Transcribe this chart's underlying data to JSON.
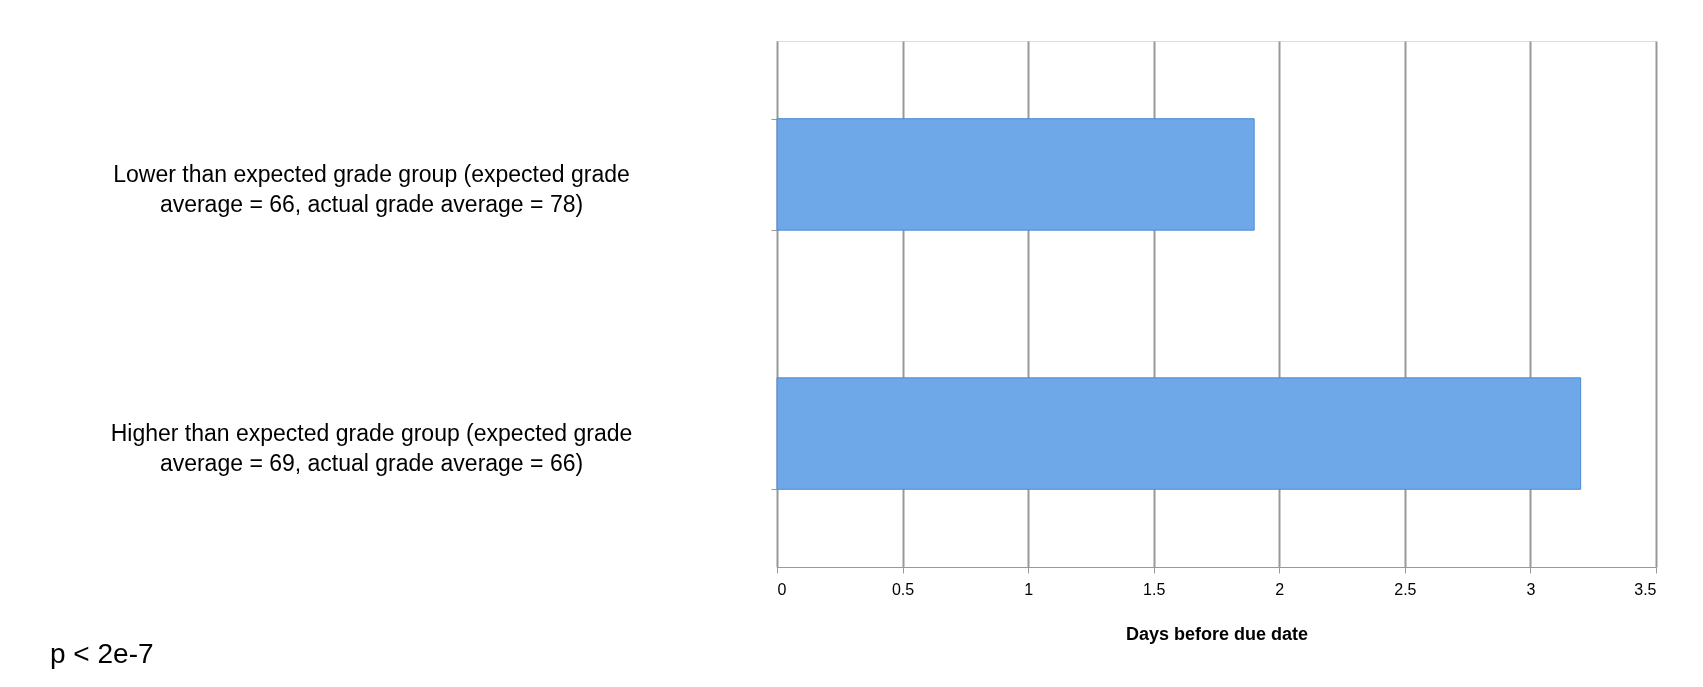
{
  "chart_data": {
    "type": "bar",
    "orientation": "horizontal",
    "xlabel": "Days before due date",
    "categories": [
      "Lower than expected grade group (expected grade average = 66, actual grade average = 78)",
      "Higher than expected grade group (expected grade average = 69, actual grade average = 66)"
    ],
    "values": [
      1.9,
      3.2
    ],
    "color": "#6fa8e8",
    "xlim": [
      0,
      3.5
    ],
    "xticks": [
      0,
      0.5,
      1,
      1.5,
      2,
      2.5,
      3,
      3.5
    ],
    "grid": "x",
    "annotations": [
      "p < 2e-7"
    ]
  }
}
